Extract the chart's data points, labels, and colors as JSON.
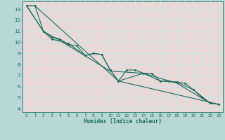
{
  "xlabel": "Humidex (Indice chaleur)",
  "bg_color": "#b8d8d8",
  "plot_bg_color": "#e8d8d8",
  "grid_color": "#c8e8e8",
  "line_color": "#1a6b5a",
  "xlim": [
    -0.5,
    23.5
  ],
  "ylim": [
    3.7,
    13.7
  ],
  "yticks": [
    4,
    5,
    6,
    7,
    8,
    9,
    10,
    11,
    12,
    13
  ],
  "xticks": [
    0,
    1,
    2,
    3,
    4,
    5,
    6,
    7,
    8,
    9,
    10,
    11,
    12,
    13,
    14,
    15,
    16,
    17,
    18,
    19,
    20,
    21,
    22,
    23
  ],
  "series1": [
    [
      0,
      13.3
    ],
    [
      1,
      13.3
    ],
    [
      2,
      11.0
    ],
    [
      3,
      10.5
    ],
    [
      4,
      10.3
    ],
    [
      5,
      9.8
    ],
    [
      6,
      9.7
    ],
    [
      7,
      8.8
    ],
    [
      8,
      9.0
    ],
    [
      9,
      8.9
    ],
    [
      10,
      7.5
    ],
    [
      11,
      6.5
    ],
    [
      12,
      7.5
    ],
    [
      13,
      7.5
    ],
    [
      14,
      7.2
    ],
    [
      15,
      7.2
    ],
    [
      16,
      6.5
    ],
    [
      17,
      6.5
    ],
    [
      18,
      6.4
    ],
    [
      19,
      6.3
    ],
    [
      20,
      5.7
    ],
    [
      21,
      5.0
    ],
    [
      22,
      4.5
    ],
    [
      23,
      4.4
    ]
  ],
  "series2": [
    [
      0,
      13.3
    ],
    [
      2,
      11.0
    ],
    [
      3,
      10.3
    ],
    [
      5,
      9.9
    ],
    [
      7,
      8.8
    ],
    [
      8,
      9.0
    ],
    [
      9,
      8.9
    ],
    [
      10,
      7.5
    ],
    [
      11,
      6.5
    ],
    [
      14,
      7.2
    ],
    [
      16,
      6.5
    ],
    [
      18,
      6.4
    ],
    [
      20,
      5.7
    ],
    [
      22,
      4.5
    ],
    [
      23,
      4.4
    ]
  ],
  "series3": [
    [
      0,
      13.3
    ],
    [
      1,
      13.3
    ],
    [
      11,
      6.5
    ],
    [
      23,
      4.4
    ]
  ],
  "series4": [
    [
      0,
      13.3
    ],
    [
      2,
      11.0
    ],
    [
      5,
      9.7
    ],
    [
      10,
      7.4
    ],
    [
      14,
      7.2
    ],
    [
      18,
      6.3
    ],
    [
      22,
      4.5
    ],
    [
      23,
      4.4
    ]
  ]
}
